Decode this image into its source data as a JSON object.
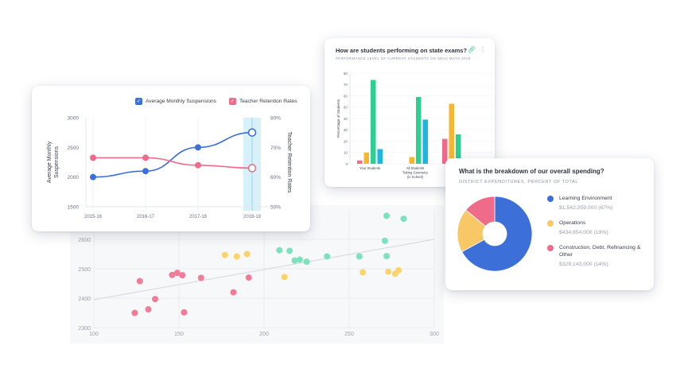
{
  "scatter": {
    "chart_data": {
      "type": "scatter",
      "xlim": [
        100,
        300
      ],
      "ylim": [
        2300,
        2700
      ],
      "x_ticks": [
        "100",
        "150",
        "200",
        "250",
        "300"
      ],
      "y_ticks": [
        "2300",
        "2400",
        "2500",
        "2600"
      ],
      "trend": {
        "x0": 100,
        "y0": 2395,
        "x1": 300,
        "y1": 2600
      },
      "series": [
        {
          "color": "#f07c98",
          "points": [
            [
              124,
              2350
            ],
            [
              127,
              2458
            ],
            [
              132,
              2362
            ],
            [
              136,
              2397
            ],
            [
              146,
              2479
            ],
            [
              149,
              2486
            ],
            [
              152,
              2478
            ],
            [
              153,
              2352
            ],
            [
              163,
              2469
            ],
            [
              182,
              2420
            ],
            [
              191,
              2470
            ]
          ]
        },
        {
          "color": "#f8d46a",
          "points": [
            [
              177,
              2547
            ],
            [
              184,
              2542
            ],
            [
              190,
              2550
            ],
            [
              212,
              2472
            ],
            [
              258,
              2488
            ],
            [
              273,
              2490
            ],
            [
              277,
              2483
            ],
            [
              279,
              2495
            ]
          ]
        },
        {
          "color": "#7fe0bd",
          "points": [
            [
              209,
              2563
            ],
            [
              215,
              2561
            ],
            [
              218,
              2528
            ],
            [
              221,
              2531
            ],
            [
              225,
              2524
            ],
            [
              237,
              2542
            ],
            [
              256,
              2542
            ],
            [
              271,
              2595
            ],
            [
              272,
              2543
            ],
            [
              272,
              2680
            ],
            [
              282,
              2670
            ]
          ]
        }
      ]
    }
  },
  "line_card": {
    "legend": [
      {
        "label": "Average Monthly Suspensions",
        "color": "#3d6fd8"
      },
      {
        "label": "Teacher Retention Rates",
        "color": "#ef6b8a"
      }
    ],
    "chart_data": {
      "type": "line",
      "categories": [
        "2015-16",
        "2016-17",
        "2017-18",
        "2018-19"
      ],
      "ylabel_left": "Average Monthly Suspensions",
      "ylabel_right": "Teacher Retention Rates",
      "ylim_left": [
        1500,
        3000
      ],
      "ylim_right": [
        50,
        80
      ],
      "left_ticks": [
        "3000",
        "2500",
        "2000",
        "1500"
      ],
      "right_ticks": [
        "80%",
        "70%",
        "60%",
        "50%"
      ],
      "series": [
        {
          "name": "Average Monthly Suspensions",
          "axis": "left",
          "values": [
            2000,
            2100,
            2500,
            2750
          ],
          "color": "#3d6fd8"
        },
        {
          "name": "Teacher Retention Rates",
          "axis": "right",
          "values": [
            66.5,
            66.5,
            64,
            63
          ],
          "color": "#ef6b8a"
        }
      ],
      "highlight_category": "2018-19"
    }
  },
  "bar_card": {
    "title": "How are students performing on state exams?",
    "subtitle": "PERFORMANCE LEVEL OF CURRENT STUDENTS ON SBAC MATH 2018",
    "chart_data": {
      "type": "bar",
      "ylabel": "Percentage of Students",
      "ylim": [
        0,
        80
      ],
      "y_ticks": [
        "0",
        "10",
        "20",
        "30",
        "40",
        "50",
        "60",
        "70",
        "80"
      ],
      "categories": [
        [
          "Your Students"
        ],
        [
          "All Students",
          "Taking Geometry",
          "(in School)"
        ],
        [
          "All St",
          "Tak",
          "(i"
        ]
      ],
      "colors": [
        "#ef6b8a",
        "#f5b731",
        "#2fce93",
        "#1db6e0"
      ],
      "groups": [
        [
          3,
          10,
          74,
          13
        ],
        [
          0,
          6,
          59,
          39
        ],
        [
          22,
          53,
          26,
          0
        ]
      ]
    }
  },
  "donut_card": {
    "title": "What is the breakdown of our overall spending?",
    "subtitle": "DISTRICT EXPENDITURES, PERCENT OF TOTAL",
    "chart_data": {
      "type": "pie",
      "slices": [
        {
          "label": "Learning Environment",
          "amount": "$1,542,359,000 (67%)",
          "value": 67,
          "color": "#3d6fd8"
        },
        {
          "label": "Operations",
          "amount": "$434,654,000 (19%)",
          "value": 19,
          "color": "#f9c866"
        },
        {
          "label": "Construction, Debt, Refinancing & Other",
          "amount": "$329,143,000 (14%)",
          "value": 14,
          "color": "#ef6b8a"
        }
      ]
    }
  }
}
